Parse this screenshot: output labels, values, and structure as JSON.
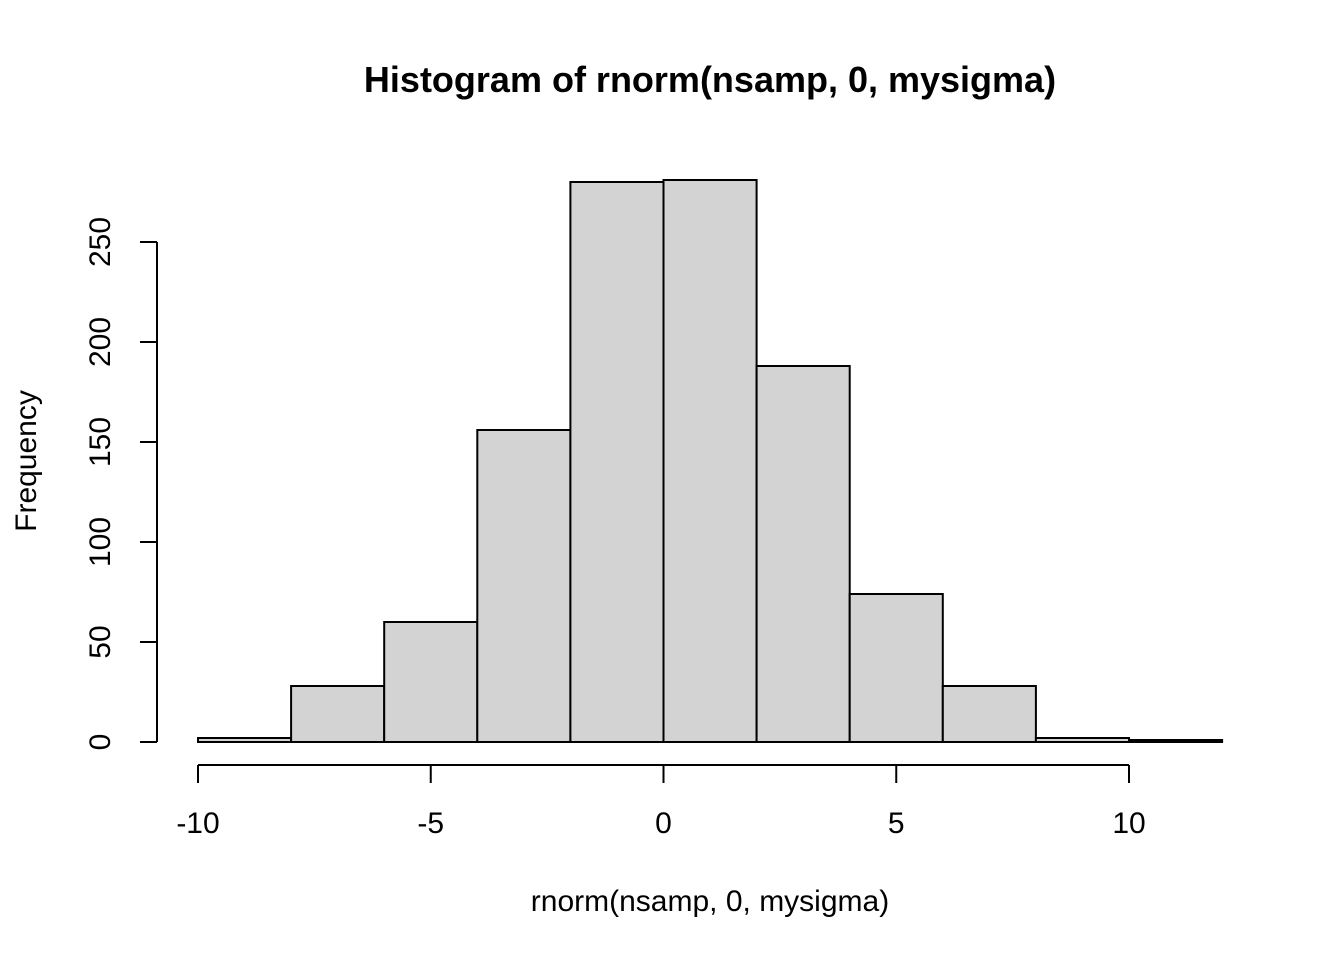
{
  "chart_data": {
    "type": "bar",
    "title": "Histogram of rnorm(nsamp, 0, mysigma)",
    "xlabel": "rnorm(nsamp, 0, mysigma)",
    "ylabel": "Frequency",
    "bin_edges": [
      -10,
      -8,
      -6,
      -4,
      -2,
      0,
      2,
      4,
      6,
      8,
      10,
      12
    ],
    "values": [
      2,
      28,
      60,
      156,
      280,
      281,
      188,
      74,
      28,
      2,
      1
    ],
    "xticks": [
      -10,
      -5,
      0,
      5,
      10
    ],
    "yticks": [
      0,
      50,
      100,
      150,
      200,
      250
    ],
    "xlim": [
      -10,
      12
    ],
    "ylim": [
      0,
      281
    ],
    "bar_color": "#d3d3d3",
    "grid": false
  }
}
